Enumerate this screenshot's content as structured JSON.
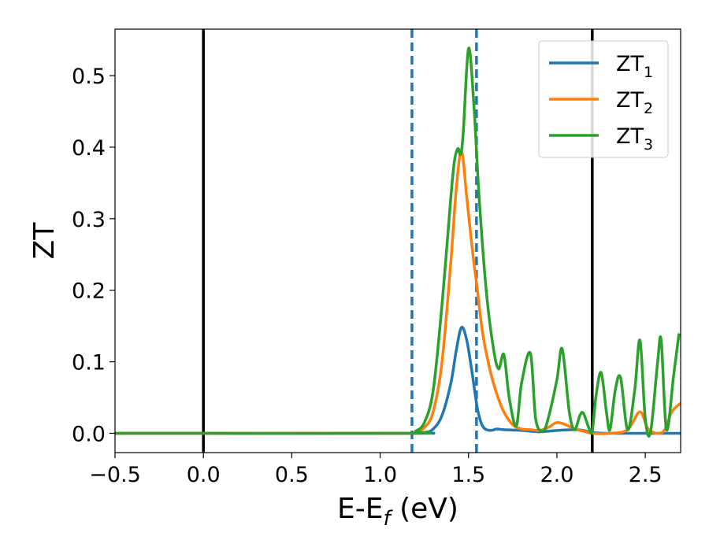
{
  "chart_data": {
    "type": "line",
    "title": "",
    "xlabel": "E-E",
    "xlabel_sub": "f",
    "xlabel_unit": " (eV)",
    "ylabel": "ZT",
    "xlim": [
      -0.5,
      2.7
    ],
    "ylim": [
      -0.027,
      0.565
    ],
    "xticks": [
      -0.5,
      0.0,
      0.5,
      1.0,
      1.5,
      2.0,
      2.5
    ],
    "xtick_labels": [
      "−0.5",
      "0.0",
      "0.5",
      "1.0",
      "1.5",
      "2.0",
      "2.5"
    ],
    "yticks": [
      0.0,
      0.1,
      0.2,
      0.3,
      0.4,
      0.5
    ],
    "ytick_labels": [
      "0.0",
      "0.1",
      "0.2",
      "0.3",
      "0.4",
      "0.5"
    ],
    "grid": false,
    "legend_position": "top-right",
    "vlines_solid": [
      0.0,
      2.2
    ],
    "vlines_dashed": [
      1.18,
      1.545
    ],
    "series": [
      {
        "name": "ZT",
        "name_sub": "1",
        "color": "#1f77b4",
        "x": [
          -0.5,
          1.15,
          1.25,
          1.3,
          1.35,
          1.4,
          1.43,
          1.46,
          1.49,
          1.52,
          1.55,
          1.58,
          1.62,
          1.66,
          1.7,
          1.8,
          1.9,
          2.0,
          2.1,
          2.15,
          2.2,
          2.3,
          2.7
        ],
        "y": [
          0.0,
          0.0,
          0.001,
          0.006,
          0.025,
          0.07,
          0.115,
          0.148,
          0.13,
          0.085,
          0.035,
          0.01,
          0.004,
          0.006,
          0.005,
          0.004,
          0.002,
          0.004,
          0.005,
          0.004,
          0.001,
          0.0,
          0.0
        ]
      },
      {
        "name": "ZT",
        "name_sub": "2",
        "color": "#ff7f0e",
        "x": [
          -0.5,
          1.15,
          1.2,
          1.25,
          1.3,
          1.35,
          1.4,
          1.43,
          1.46,
          1.49,
          1.52,
          1.55,
          1.58,
          1.62,
          1.66,
          1.7,
          1.75,
          1.8,
          1.85,
          1.9,
          1.95,
          2.0,
          2.05,
          2.1,
          2.15,
          2.2,
          2.3,
          2.4,
          2.47,
          2.52,
          2.6,
          2.65,
          2.7
        ],
        "y": [
          0.0,
          0.0,
          0.002,
          0.008,
          0.03,
          0.1,
          0.24,
          0.34,
          0.395,
          0.33,
          0.26,
          0.2,
          0.14,
          0.09,
          0.055,
          0.03,
          0.012,
          0.006,
          0.005,
          0.004,
          0.008,
          0.015,
          0.012,
          0.006,
          0.003,
          0.0,
          0.0,
          0.005,
          0.03,
          0.005,
          0.002,
          0.03,
          0.042
        ]
      },
      {
        "name": "ZT",
        "name_sub": "3",
        "color": "#2ca02c",
        "x": [
          -0.5,
          1.15,
          1.2,
          1.25,
          1.3,
          1.35,
          1.4,
          1.42,
          1.44,
          1.455,
          1.47,
          1.5,
          1.53,
          1.56,
          1.6,
          1.64,
          1.67,
          1.7,
          1.73,
          1.77,
          1.8,
          1.85,
          1.88,
          1.92,
          1.95,
          2.0,
          2.03,
          2.07,
          2.1,
          2.13,
          2.15,
          2.18,
          2.2,
          2.22,
          2.25,
          2.28,
          2.3,
          2.33,
          2.36,
          2.4,
          2.44,
          2.47,
          2.5,
          2.53,
          2.57,
          2.59,
          2.62,
          2.66,
          2.69
        ],
        "y": [
          0.0,
          0.0,
          0.003,
          0.015,
          0.06,
          0.18,
          0.33,
          0.38,
          0.398,
          0.39,
          0.42,
          0.538,
          0.46,
          0.33,
          0.2,
          0.12,
          0.09,
          0.11,
          0.05,
          0.01,
          0.07,
          0.112,
          0.02,
          0.003,
          0.02,
          0.075,
          0.118,
          0.03,
          0.005,
          0.025,
          0.028,
          0.008,
          0.003,
          0.05,
          0.085,
          0.03,
          0.005,
          0.06,
          0.078,
          0.005,
          0.06,
          0.13,
          0.02,
          0.002,
          0.1,
          0.13,
          0.005,
          0.08,
          0.138
        ]
      }
    ]
  }
}
